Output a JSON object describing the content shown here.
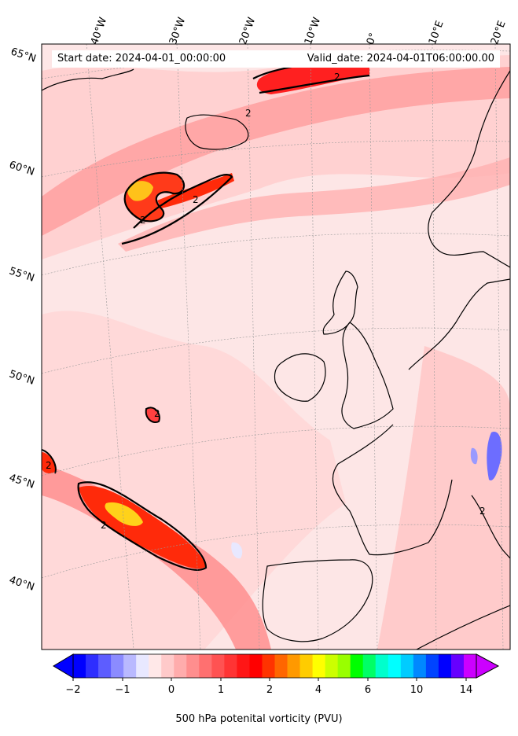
{
  "map": {
    "start_date": "Start date: 2024-04-01_00:00:00",
    "valid_date": "Valid_date: 2024-04-01T06:00:00.00",
    "lon_labels": [
      "40°W",
      "30°W",
      "20°W",
      "10°W",
      "0°",
      "10°E",
      "20°E"
    ],
    "lat_labels": [
      "65°N",
      "60°N",
      "55°N",
      "50°N",
      "45°N",
      "40°N"
    ],
    "contour_label": "2",
    "colors": {
      "land_line": "#000000",
      "ocean_base": "#fde8e8",
      "max_pv": "#ffeb3b"
    }
  },
  "colorbar": {
    "title": "500 hPa potenital vorticity (PVU)",
    "tick_labels": [
      "−2",
      "−1",
      "0",
      "1",
      "2",
      "4",
      "6",
      "10",
      "14"
    ],
    "colors": [
      "#0000ff",
      "#2e2eff",
      "#5d5dff",
      "#8b8bff",
      "#b9b9ff",
      "#e8e8ff",
      "#ffe8e8",
      "#ffcaca",
      "#ffacac",
      "#ff8e8e",
      "#ff7070",
      "#ff5252",
      "#ff3434",
      "#ff1616",
      "#ff0000",
      "#ff3300",
      "#ff6600",
      "#ff9900",
      "#ffcc00",
      "#ffff00",
      "#ccff00",
      "#99ff00",
      "#00ff00",
      "#00ff66",
      "#00ffcc",
      "#00ffff",
      "#00ccff",
      "#0088ff",
      "#0044ff",
      "#0000ff",
      "#6600ff",
      "#cc00ff"
    ]
  }
}
